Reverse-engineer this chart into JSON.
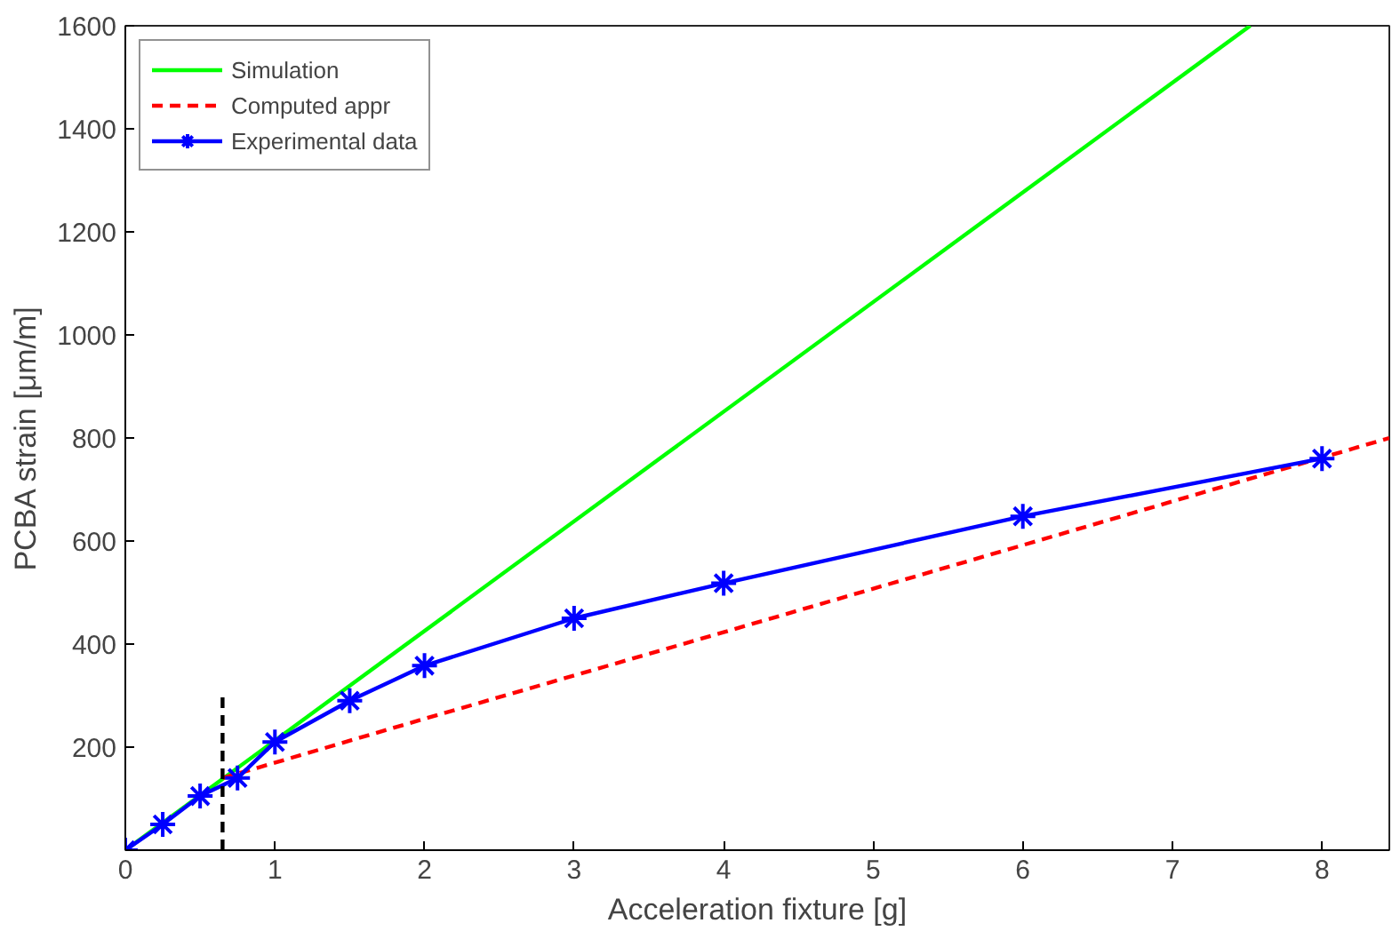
{
  "chart_data": {
    "type": "line",
    "xlabel": "Acceleration fixture [g]",
    "ylabel": "PCBA strain [μm/m]",
    "xlim": [
      0,
      8.45
    ],
    "ylim": [
      0,
      1600
    ],
    "xticks": [
      0,
      1,
      2,
      3,
      4,
      5,
      6,
      7,
      8
    ],
    "yticks": [
      200,
      400,
      600,
      800,
      1000,
      1200,
      1400,
      1600
    ],
    "grid": false,
    "legend": "top left",
    "series": [
      {
        "name": "Simulation",
        "color": "#00ff00",
        "x": [
          0,
          7.52
        ],
        "values": [
          0,
          1600
        ],
        "line_style": "solid",
        "marker": "none"
      },
      {
        "name": "Computed appr",
        "color": "#ff0000",
        "x": [
          0.65,
          2,
          4,
          6,
          8.45
        ],
        "values": [
          140,
          255,
          423,
          592,
          800
        ],
        "line_style": "dashed",
        "marker": "none"
      },
      {
        "name": "Experimental data",
        "color": "#0000ff",
        "x": [
          0,
          0.25,
          0.5,
          0.75,
          1,
          1.5,
          2,
          3,
          4,
          6,
          8
        ],
        "values": [
          0,
          50,
          105,
          140,
          210,
          290,
          358,
          450,
          518,
          648,
          760
        ],
        "line_style": "solid",
        "marker": "cross"
      },
      {
        "color": "#000000",
        "x": [
          0.65,
          0.65
        ],
        "values": [
          0,
          300
        ],
        "line_style": "dashed",
        "marker": "none"
      }
    ]
  }
}
